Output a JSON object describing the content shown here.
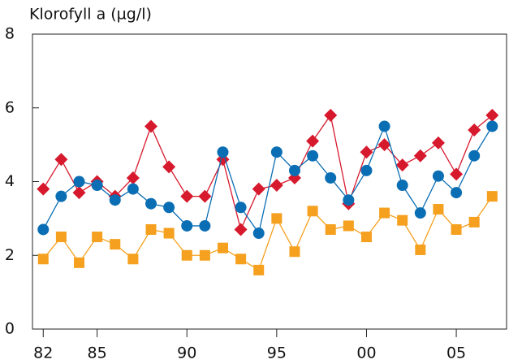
{
  "chart_data": {
    "type": "line",
    "title": "Klorofyll a (µg/l)",
    "x": [
      1982,
      1983,
      1984,
      1985,
      1986,
      1987,
      1988,
      1989,
      1990,
      1991,
      1992,
      1993,
      1994,
      1995,
      1996,
      1997,
      1998,
      1999,
      2000,
      2001,
      2002,
      2003,
      2004,
      2005,
      2006,
      2007
    ],
    "series": [
      {
        "color": "#d7192d",
        "marker": "diamond",
        "values": [
          3.8,
          4.6,
          3.7,
          4.0,
          3.6,
          4.1,
          5.5,
          4.4,
          3.6,
          3.6,
          4.6,
          2.7,
          3.8,
          3.9,
          4.1,
          5.1,
          5.8,
          3.4,
          4.8,
          5.0,
          4.45,
          4.7,
          5.05,
          4.2,
          5.4,
          5.8
        ]
      },
      {
        "color": "#0a6eb4",
        "marker": "circle",
        "values": [
          2.7,
          3.6,
          4.0,
          3.9,
          3.5,
          3.8,
          3.4,
          3.3,
          2.8,
          2.8,
          4.8,
          3.3,
          2.6,
          4.8,
          4.3,
          4.7,
          4.1,
          3.5,
          4.3,
          5.5,
          3.9,
          3.15,
          4.15,
          3.7,
          4.7,
          5.5
        ]
      },
      {
        "color": "#f5a01e",
        "marker": "square",
        "values": [
          1.9,
          2.5,
          1.8,
          2.5,
          2.3,
          1.9,
          2.7,
          2.6,
          2.0,
          2.0,
          2.2,
          1.9,
          1.6,
          3.0,
          2.1,
          3.2,
          2.7,
          2.8,
          2.5,
          3.15,
          2.95,
          2.15,
          3.25,
          2.7,
          2.9,
          3.6
        ]
      }
    ],
    "xlim": [
      1981.4,
      2007.8
    ],
    "xticks": [
      {
        "value": 1982,
        "label": "82"
      },
      {
        "value": 1985,
        "label": "85"
      },
      {
        "value": 1990,
        "label": "90"
      },
      {
        "value": 1995,
        "label": "95"
      },
      {
        "value": 2000,
        "label": "00"
      },
      {
        "value": 2005,
        "label": "05"
      }
    ],
    "ylim": [
      0,
      8
    ],
    "yticks": [
      0,
      2,
      4,
      6,
      8
    ]
  }
}
